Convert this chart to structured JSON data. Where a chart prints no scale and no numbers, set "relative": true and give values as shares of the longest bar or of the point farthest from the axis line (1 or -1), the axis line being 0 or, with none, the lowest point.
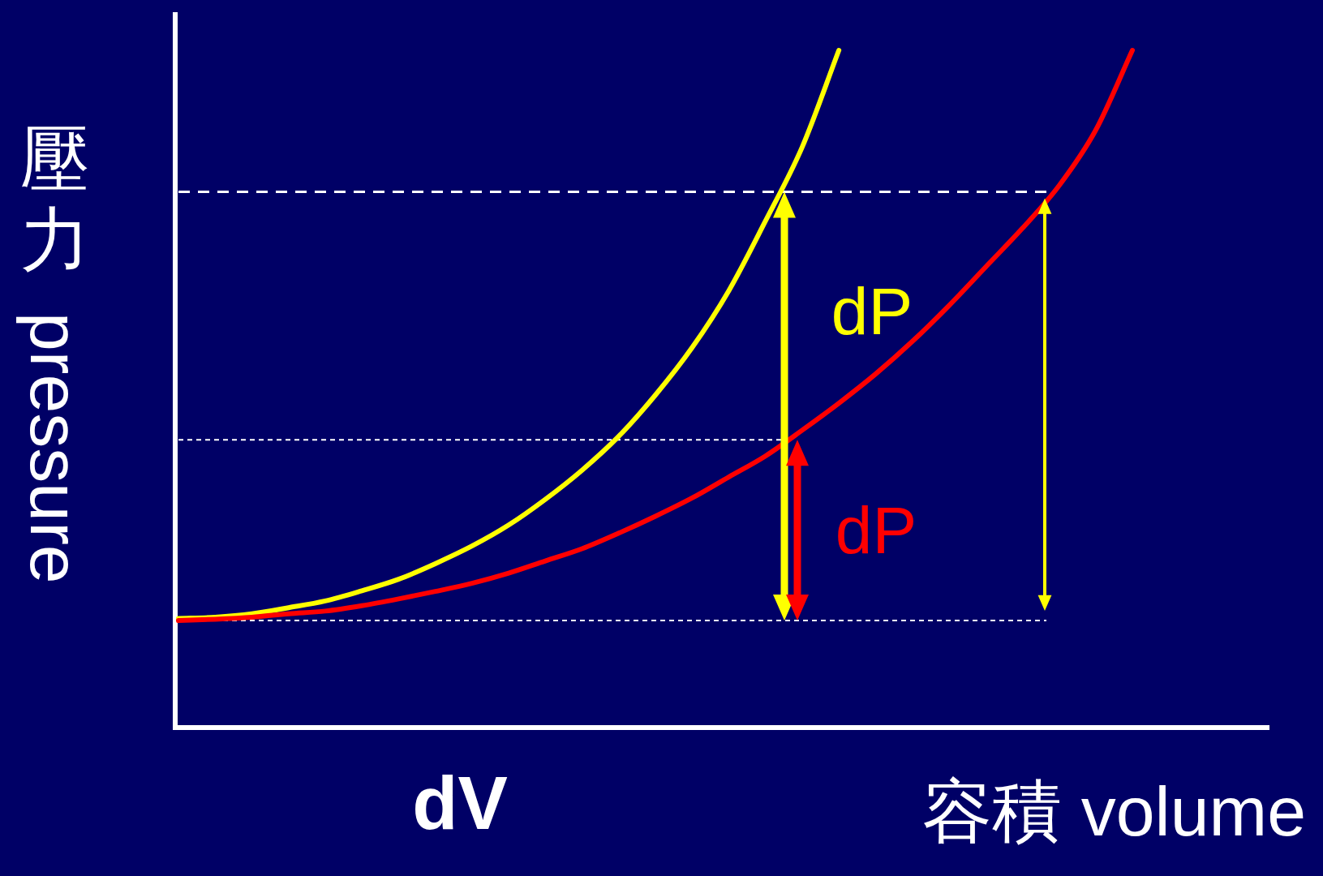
{
  "chart_data": {
    "type": "line",
    "relative": true,
    "ylabel": "壓力 pressure",
    "xlabel": "容積 volume",
    "categories": [
      null,
      null,
      null,
      null,
      null,
      null,
      null,
      null,
      null,
      null,
      null,
      null,
      null,
      null,
      null,
      null,
      null,
      null,
      null,
      null,
      null,
      null,
      null,
      null,
      null,
      null,
      null
    ],
    "series": [
      {
        "color": "#ffff00",
        "values": [
          0.161,
          0.163,
          0.168,
          0.177,
          0.187,
          0.202,
          0.219,
          0.242,
          0.268,
          0.299,
          0.337,
          0.38,
          0.43,
          0.491,
          0.561,
          0.645,
          0.748,
          0.857,
          1.0,
          null,
          null,
          null,
          null,
          null,
          null,
          null,
          null
        ]
      },
      {
        "color": "#ff0000",
        "values": [
          0.158,
          0.16,
          0.163,
          0.168,
          0.172,
          0.18,
          0.19,
          0.201,
          0.213,
          0.228,
          0.246,
          0.264,
          0.287,
          0.312,
          0.339,
          0.37,
          0.401,
          0.439,
          0.479,
          0.522,
          0.57,
          0.623,
          0.68,
          0.737,
          0.8,
          0.882,
          1.0
        ]
      }
    ],
    "ref_lines": [
      {
        "axis": "y",
        "value": 0.791,
        "color": "#ffffff",
        "line_style": "dashed"
      },
      {
        "axis": "y",
        "value": 0.425,
        "color": "#ffffff",
        "line_style": "dashed"
      },
      {
        "axis": "y",
        "value": 0.158,
        "color": "#ffffff",
        "line_style": "dashed"
      }
    ],
    "annotations": [
      "dP",
      "dP",
      "dV"
    ]
  }
}
